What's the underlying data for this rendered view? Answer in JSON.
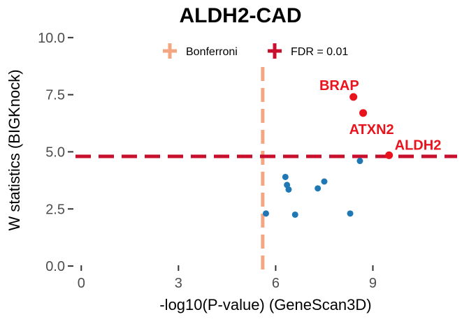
{
  "chart_data": {
    "type": "scatter",
    "title": "ALDH2-CAD",
    "xlabel": "-log10(P-value) (GeneScan3D)",
    "ylabel": "W statistics (BIGKnock)",
    "xlim": [
      -0.2,
      11.6
    ],
    "ylim": [
      -0.15,
      10.3
    ],
    "x_ticks": [
      0,
      3,
      6,
      9
    ],
    "x_tick_labels": [
      "0",
      "3",
      "6",
      "9"
    ],
    "y_ticks": [
      0.0,
      2.5,
      5.0,
      7.5,
      10.0
    ],
    "y_tick_labels": [
      "0.0",
      "2.5",
      "5.0",
      "7.5",
      "10.0"
    ],
    "grid": false,
    "legend": {
      "position": "top",
      "entries": [
        {
          "label": "Bonferroni",
          "color": "#f4a582",
          "style": "dashed-vertical"
        },
        {
          "label": "FDR = 0.01",
          "color": "#c8102e",
          "style": "dashed-horizontal"
        }
      ]
    },
    "reference_lines": [
      {
        "name": "Bonferroni",
        "orientation": "vertical",
        "value": 5.6,
        "color": "#f4a582"
      },
      {
        "name": "FDR = 0.01",
        "orientation": "horizontal",
        "value": 4.8,
        "color": "#c8102e"
      }
    ],
    "series": [
      {
        "color": "#1f78b4",
        "points": [
          {
            "x": 5.7,
            "y": 2.3
          },
          {
            "x": 6.3,
            "y": 3.9
          },
          {
            "x": 6.35,
            "y": 3.55
          },
          {
            "x": 6.4,
            "y": 3.35
          },
          {
            "x": 6.6,
            "y": 2.25
          },
          {
            "x": 7.3,
            "y": 3.4
          },
          {
            "x": 7.5,
            "y": 3.7
          },
          {
            "x": 8.3,
            "y": 2.3
          },
          {
            "x": 8.6,
            "y": 4.6
          }
        ]
      },
      {
        "color": "#e8131c",
        "points": [
          {
            "x": 8.4,
            "y": 7.4,
            "label": "BRAP"
          },
          {
            "x": 8.7,
            "y": 6.7,
            "label": "ATXN2"
          },
          {
            "x": 9.5,
            "y": 4.85,
            "label": "ALDH2"
          }
        ]
      }
    ]
  }
}
